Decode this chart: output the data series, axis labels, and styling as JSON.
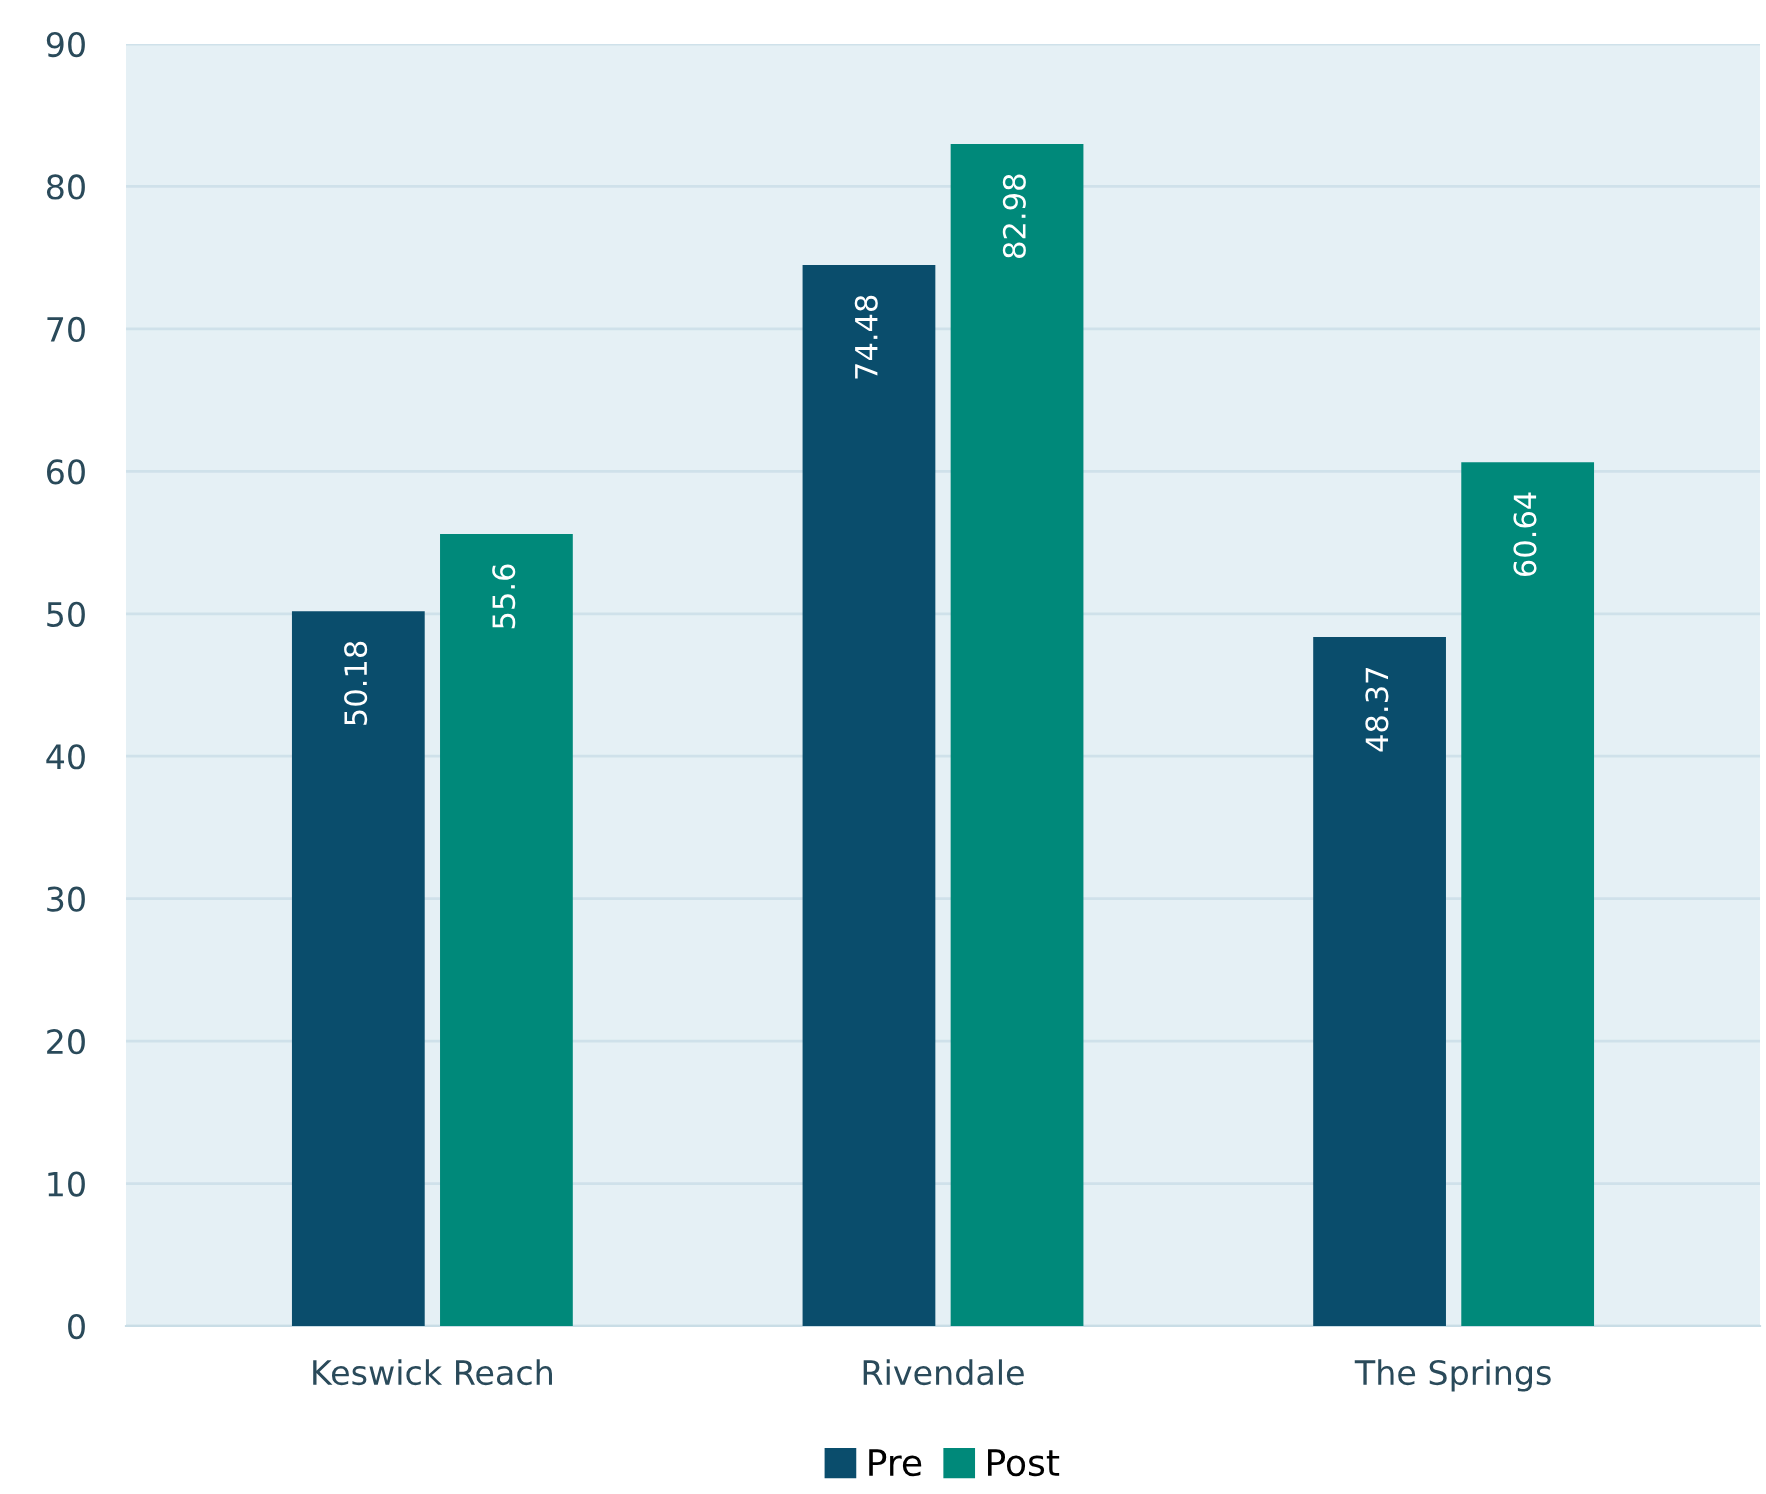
{
  "chart_data": {
    "type": "bar",
    "categories": [
      "Keswick Reach",
      "Rivendale",
      "The Springs"
    ],
    "series": [
      {
        "name": "Pre",
        "color": "#0a4d6c",
        "values": [
          50.18,
          74.48,
          48.37
        ]
      },
      {
        "name": "Post",
        "color": "#00897a",
        "values": [
          55.6,
          82.98,
          60.64
        ]
      }
    ],
    "ylim": [
      0,
      90
    ],
    "yticks": [
      0,
      10,
      20,
      30,
      40,
      50,
      60,
      70,
      80,
      90
    ],
    "grid": "y",
    "legend": "bottom",
    "data_labels": true
  }
}
